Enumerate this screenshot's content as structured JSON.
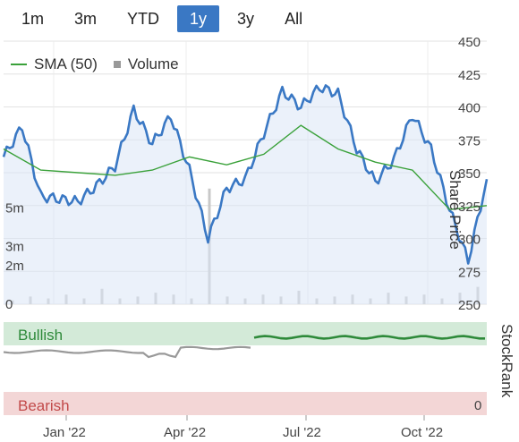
{
  "range_buttons": [
    "1m",
    "3m",
    "YTD",
    "1y",
    "3y",
    "All"
  ],
  "active_range": "1y",
  "legend": {
    "sma_label": "SMA (50)",
    "volume_label": "Volume"
  },
  "axis": {
    "price_title": "Share Price",
    "rank_title": "StockRank",
    "price_ticks": [
      "450",
      "425",
      "400",
      "375",
      "350",
      "325",
      "300",
      "275",
      "250"
    ],
    "volume_ticks": [
      "5m",
      "3m",
      "2m",
      "0"
    ],
    "x_ticks": [
      "Jan '22",
      "Apr '22",
      "Jul '22",
      "Oct '22"
    ],
    "rank_zero": "0"
  },
  "bands": {
    "bullish_label": "Bullish",
    "bearish_label": "Bearish"
  },
  "colors": {
    "price_line": "#3a78c4",
    "sma_line": "#3aa13a",
    "volume": "#c8c8c8",
    "bullish_bg": "#d3ead8",
    "bearish_bg": "#f3d6d6",
    "rank_gray": "#999999",
    "rank_green": "#2e8a3a"
  },
  "chart_data": {
    "type": "line",
    "price_ylim": [
      250,
      450
    ],
    "series": [
      {
        "name": "Share Price",
        "x": [
          0,
          2,
          4,
          6,
          8,
          10,
          12,
          14,
          16,
          18,
          20,
          22,
          24,
          26,
          28,
          30,
          32,
          34,
          36,
          38,
          40,
          42,
          44,
          46,
          48,
          50,
          52
        ],
        "values": [
          362,
          385,
          332,
          330,
          328,
          340,
          355,
          398,
          372,
          393,
          352,
          300,
          338,
          345,
          380,
          412,
          400,
          415,
          410,
          368,
          343,
          360,
          394,
          368,
          322,
          283,
          345
        ]
      },
      {
        "name": "SMA (50)",
        "x": [
          0,
          4,
          8,
          12,
          16,
          20,
          24,
          28,
          32,
          36,
          40,
          44,
          48,
          52
        ],
        "values": [
          368,
          352,
          350,
          348,
          352,
          362,
          356,
          364,
          386,
          368,
          358,
          352,
          322,
          325
        ]
      }
    ],
    "volume_millions": [
      0.2,
      0.4,
      0.3,
      0.5,
      0.3,
      0.8,
      0.3,
      0.4,
      0.6,
      0.5,
      0.3,
      6.0,
      0.4,
      0.3,
      0.5,
      0.4,
      0.7,
      0.3,
      0.4,
      0.5,
      0.3,
      0.6,
      0.4,
      0.5,
      0.3,
      0.6,
      0.9
    ]
  }
}
